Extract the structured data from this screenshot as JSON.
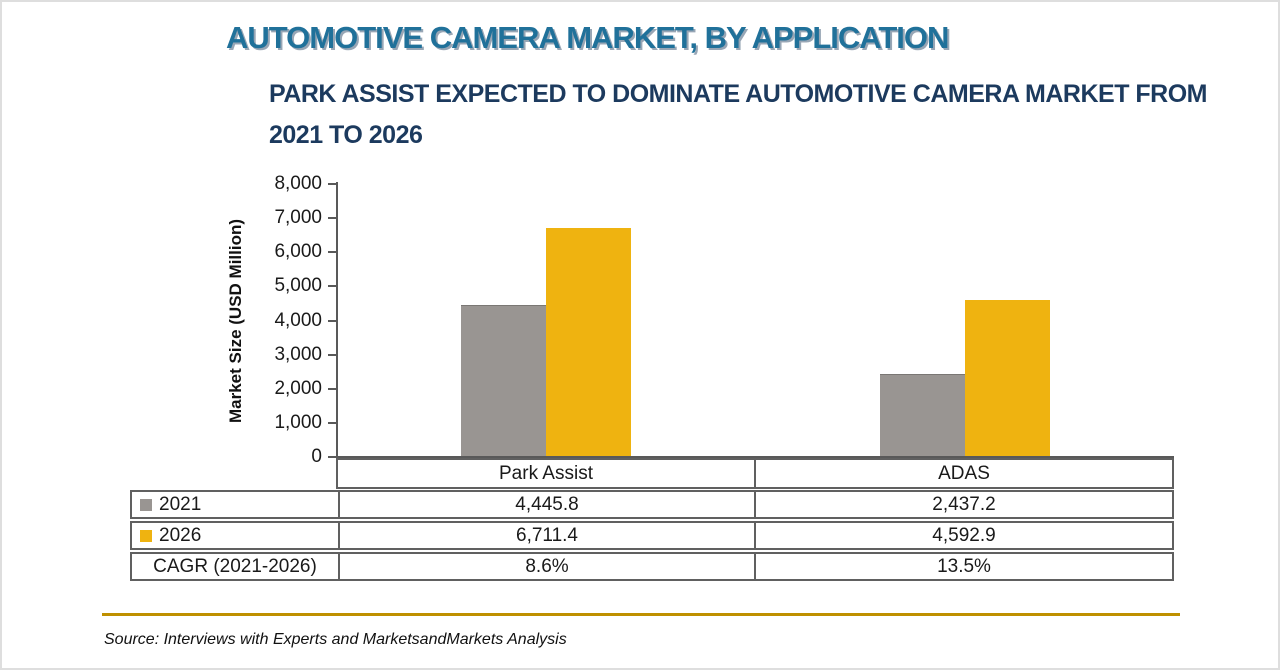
{
  "page": {
    "title": "AUTOMOTIVE CAMERA MARKET, BY APPLICATION",
    "subtitle_lines": [
      "PARK ASSIST EXPECTED TO DOMINATE AUTOMOTIVE CAMERA MARKET FROM",
      "2021 TO 2026"
    ],
    "source": "Source: Interviews with Experts and MarketsandMarkets Analysis"
  },
  "colors": {
    "title_teal": "#20719a",
    "subtitle_navy": "#1c3a5e",
    "series_2021_gray": "#999592",
    "series_2026_gold": "#efb310",
    "axis_gray": "#595959",
    "table_border_gray": "#606060",
    "gold_divider": "#bf9000"
  },
  "chart_data": {
    "type": "bar",
    "title": "AUTOMOTIVE CAMERA MARKET, BY APPLICATION",
    "subtitle": "PARK ASSIST EXPECTED TO DOMINATE AUTOMOTIVE CAMERA MARKET FROM 2021 TO 2026",
    "categories": [
      "Park Assist",
      "ADAS"
    ],
    "series": [
      {
        "name": "2021",
        "color": "#999592",
        "values": [
          4445.8,
          2437.2
        ]
      },
      {
        "name": "2026",
        "color": "#efb310",
        "values": [
          6711.4,
          4592.9
        ]
      }
    ],
    "cagr": {
      "label": "CAGR (2021-2026)",
      "values": [
        "8.6%",
        "13.5%"
      ]
    },
    "xlabel": "",
    "ylabel": "Market Size (USD Million)",
    "ylim": [
      0,
      8000
    ],
    "ytick_step": 1000,
    "grid": false,
    "legend_position": "table-left"
  },
  "table": {
    "header": [
      "Park Assist",
      "ADAS"
    ],
    "rows": [
      {
        "label": "2021",
        "marker_color": "#999592",
        "values": [
          "4,445.8",
          "2,437.2"
        ]
      },
      {
        "label": "2026",
        "marker_color": "#efb310",
        "values": [
          "6,711.4",
          "4,592.9"
        ]
      },
      {
        "label": "CAGR (2021-2026)",
        "marker_color": "",
        "values": [
          "8.6%",
          "13.5%"
        ]
      }
    ]
  }
}
